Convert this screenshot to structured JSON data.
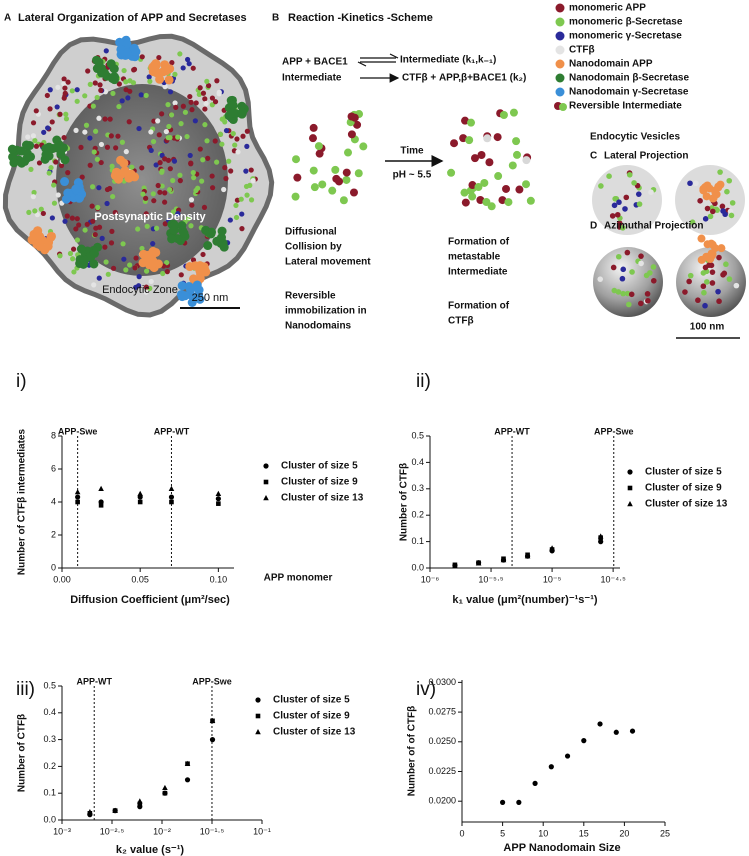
{
  "diagram": {
    "panel_a": {
      "letter": "A",
      "title": "Lateral Organization of APP and Secretases",
      "inner_label": "Postsynaptic Density",
      "zone_label": "Endocytic Zone",
      "scale": "250 nm"
    },
    "panel_b": {
      "letter": "B",
      "title": "Reaction -Kinetics -Scheme",
      "reaction1_left": "APP + BACE1",
      "reaction1_right": "Intermediate (k₁,k₋₁)",
      "reaction2_left": "Intermediate",
      "reaction2_right": "CTFβ + APP,β+BACE1 (k₂)",
      "arrow_top": "Time",
      "arrow_bottom": "pH ~ 5.5",
      "notes_left": [
        [
          "Diffusional",
          "Collision by",
          "Lateral movement"
        ],
        [
          "Reversible",
          "immobilization  in",
          "Nanodomains"
        ]
      ],
      "notes_right": [
        [
          "Formation of",
          "metastable",
          "Intermediate"
        ],
        [
          "Formation of",
          "CTFβ"
        ]
      ]
    },
    "legend": [
      {
        "label": "monomeric APP",
        "color": "#8b1a2b"
      },
      {
        "label": "monomeric β-Secretase",
        "color": "#7ec850"
      },
      {
        "label": "monomeric γ-Secretase",
        "color": "#2a2a9a"
      },
      {
        "label": "CTFβ",
        "color": "#e4e4e4"
      },
      {
        "label": "Nanodomain APP",
        "color": "#f0904a"
      },
      {
        "label": "Nanodomain β-Secretase",
        "color": "#2e7d32"
      },
      {
        "label": "Nanodomain γ-Secretase",
        "color": "#3a8fd8"
      },
      {
        "label": "Reversible Intermediate"
      }
    ],
    "panel_cd": {
      "title": "Endocytic Vesicles",
      "c_letter": "C",
      "c_title": "Lateral Projection",
      "d_letter": "D",
      "d_title": "Azimuthal Projection",
      "scale": "100 nm"
    }
  },
  "chart_data": [
    {
      "type": "scatter",
      "title": "i)",
      "y_label": "Number of CTFβ intermediates",
      "x_label": "Diffusion Coefficient (μm²/sec)",
      "x": [
        0.01,
        0.025,
        0.05,
        0.07,
        0.1
      ],
      "series": [
        {
          "name": "Cluster of size 5",
          "marker": "circle",
          "color": "#000000",
          "values": [
            4.3,
            4.0,
            4.3,
            4.3,
            4.2
          ]
        },
        {
          "name": "Cluster of size 9",
          "marker": "square",
          "color": "#000000",
          "values": [
            4.0,
            3.8,
            4.0,
            4.0,
            3.9
          ]
        },
        {
          "name": "Cluster of size 13",
          "marker": "triangle",
          "color": "#000000",
          "values": [
            4.6,
            4.8,
            4.5,
            4.8,
            4.5
          ]
        }
      ],
      "xlim": [
        0,
        0.11
      ],
      "xticks": [
        {
          "value": 0,
          "label": "0.00"
        },
        {
          "value": 0.05,
          "label": "0.05"
        },
        {
          "value": 0.1,
          "label": "0.10"
        }
      ],
      "ylim": [
        0,
        8
      ],
      "yticks": [
        0,
        2,
        4,
        6,
        8
      ],
      "vlines": [
        {
          "x": 0.01,
          "label": "APP-Swe"
        },
        {
          "x": 0.07,
          "label": "APP-WT"
        }
      ],
      "annotations": [
        {
          "text": "APP monomer"
        }
      ]
    },
    {
      "type": "scatter",
      "title": "ii)",
      "y_label": "Number of CTFβ",
      "x_label": "k₁ value (μm²(number)⁻¹s⁻¹)",
      "log_x": true,
      "x": [
        1.6e-06,
        2.5e-06,
        4e-06,
        6.3e-06,
        1e-05,
        2.5e-05
      ],
      "series": [
        {
          "name": "Cluster of size 5",
          "marker": "circle",
          "color": "#000000",
          "values": [
            0.01,
            0.02,
            0.03,
            0.045,
            0.065,
            0.1
          ]
        },
        {
          "name": "Cluster of size 9",
          "marker": "square",
          "color": "#000000",
          "values": [
            0.012,
            0.02,
            0.035,
            0.05,
            0.07,
            0.115
          ]
        },
        {
          "name": "Cluster of size 13",
          "marker": "triangle",
          "color": "#000000",
          "values": [
            0.008,
            0.018,
            0.03,
            0.045,
            0.075,
            0.12
          ]
        }
      ],
      "xlim": [
        1e-06,
        3.6e-05
      ],
      "xticks": [
        {
          "value": 1e-06,
          "label": "10⁻⁶"
        },
        {
          "value": 3.1623e-06,
          "label": "10⁻⁵·⁵"
        },
        {
          "value": 1e-05,
          "label": "10⁻⁵"
        },
        {
          "value": 3.1623e-05,
          "label": "10⁻⁴·⁵"
        }
      ],
      "ylim": [
        0,
        0.5
      ],
      "yticks": [
        {
          "value": 0,
          "label": "0.0"
        },
        0.1,
        0.2,
        0.3,
        0.4,
        0.5
      ],
      "vlines": [
        {
          "x": 4.7e-06,
          "label": "APP-WT"
        },
        {
          "x": 3.2e-05,
          "label": "APP-Swe"
        }
      ]
    },
    {
      "type": "scatter",
      "title": "iii)",
      "y_label": "Number of CTFβ",
      "x_label": "k₂ value (s⁻¹)",
      "log_x": true,
      "x": [
        0.0019,
        0.0034,
        0.006,
        0.0107,
        0.018,
        0.032
      ],
      "series": [
        {
          "name": "Cluster of size 5",
          "marker": "circle",
          "color": "#000000",
          "values": [
            0.02,
            0.035,
            0.05,
            0.1,
            0.15,
            0.3
          ]
        },
        {
          "name": "Cluster of size 9",
          "marker": "square",
          "color": "#000000",
          "values": [
            0.025,
            0.035,
            0.06,
            0.1,
            0.21,
            0.37
          ]
        },
        {
          "name": "Cluster of size 13",
          "marker": "triangle",
          "color": "#000000",
          "values": [
            0.03,
            0.035,
            0.07,
            0.12,
            0.21,
            0.37
          ]
        }
      ],
      "xlim": [
        0.001,
        0.1
      ],
      "xticks": [
        {
          "value": 0.001,
          "label": "10⁻³"
        },
        {
          "value": 0.0031623,
          "label": "10⁻²·⁵"
        },
        {
          "value": 0.01,
          "label": "10⁻²"
        },
        {
          "value": 0.031623,
          "label": "10⁻¹·⁵"
        },
        {
          "value": 0.1,
          "label": "10⁻¹"
        }
      ],
      "ylim": [
        0,
        0.5
      ],
      "yticks": [
        {
          "value": 0,
          "label": "0.0"
        },
        0.1,
        0.2,
        0.3,
        0.4,
        0.5
      ],
      "vlines": [
        {
          "x": 0.0021,
          "label": "APP-WT"
        },
        {
          "x": 0.0316,
          "label": "APP-Swe"
        }
      ]
    },
    {
      "type": "scatter",
      "title": "iv)",
      "y_label": "Number of of CTFβ",
      "x_label": "APP Nanodomain Size",
      "x": [
        5,
        7,
        9,
        11,
        13,
        15,
        17,
        19,
        21
      ],
      "values": [
        0.0199,
        0.0199,
        0.0215,
        0.0229,
        0.0238,
        0.0251,
        0.0265,
        0.0258,
        0.0259
      ],
      "marker": "circle",
      "color": "#000000",
      "xlim": [
        0,
        25
      ],
      "xticks": [
        0,
        5,
        10,
        15,
        20,
        25
      ],
      "ylim": [
        0.01825,
        0.0302
      ],
      "yticks": [
        {
          "value": 0.02,
          "label": "0.0200"
        },
        {
          "value": 0.0225,
          "label": "0.0225"
        },
        {
          "value": 0.025,
          "label": "0.0250"
        },
        {
          "value": 0.0275,
          "label": "0.0275"
        },
        {
          "value": 0.03,
          "label": "0.0300"
        }
      ]
    }
  ]
}
